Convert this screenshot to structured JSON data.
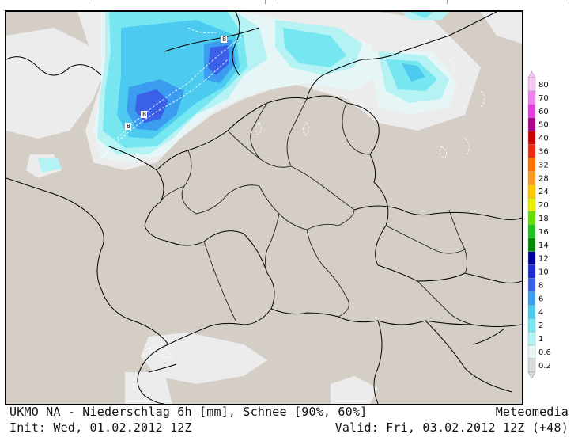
{
  "footer": {
    "title": "UKMO NA - Niederschlag 6h [mm], Schnee [90%, 60%]",
    "brand": "Meteomedia",
    "init": "Init: Wed, 01.02.2012 12Z",
    "valid": "Valid: Fri, 03.02.2012 12Z (+48)"
  },
  "legend": {
    "levels": [
      {
        "label": "80",
        "color": "#f6c6f2"
      },
      {
        "label": "70",
        "color": "#ee82ee"
      },
      {
        "label": "60",
        "color": "#e040e0"
      },
      {
        "label": "50",
        "color": "#b0008c"
      },
      {
        "label": "40",
        "color": "#cc0000"
      },
      {
        "label": "36",
        "color": "#ee2a10"
      },
      {
        "label": "32",
        "color": "#ff7000"
      },
      {
        "label": "28",
        "color": "#ff9a20"
      },
      {
        "label": "24",
        "color": "#ffc800"
      },
      {
        "label": "20",
        "color": "#e8f000"
      },
      {
        "label": "18",
        "color": "#64e000"
      },
      {
        "label": "16",
        "color": "#20c020"
      },
      {
        "label": "14",
        "color": "#008c00"
      },
      {
        "label": "12",
        "color": "#0000a0"
      },
      {
        "label": "10",
        "color": "#1c2cd0"
      },
      {
        "label": "8",
        "color": "#3a60e8"
      },
      {
        "label": "6",
        "color": "#3c9cf0"
      },
      {
        "label": "4",
        "color": "#4ccaf0"
      },
      {
        "label": "2",
        "color": "#76e6f0"
      },
      {
        "label": "1",
        "color": "#b4f2f4"
      },
      {
        "label": "0.6",
        "color": "#e6f6f6"
      },
      {
        "label": "0.2",
        "color": "#d8d8d8"
      }
    ]
  },
  "map": {
    "background_color": "#d4cec7",
    "snow_level_labels": [
      "8",
      "8",
      "8"
    ]
  }
}
